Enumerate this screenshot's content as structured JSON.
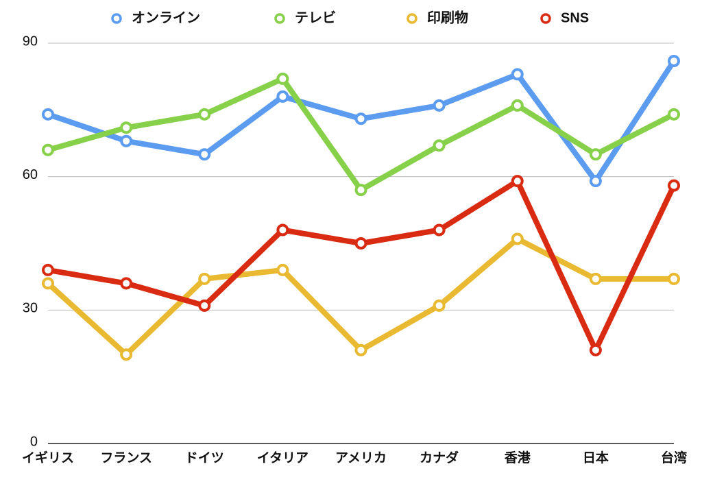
{
  "chart_data": {
    "type": "line",
    "categories": [
      "イギリス",
      "フランス",
      "ドイツ",
      "イタリア",
      "アメリカ",
      "カナダ",
      "香港",
      "日本",
      "台湾"
    ],
    "series": [
      {
        "name": "オンライン",
        "color": "#5b9cf0",
        "values": [
          74,
          68,
          65,
          78,
          73,
          76,
          83,
          59,
          86
        ]
      },
      {
        "name": "テレビ",
        "color": "#86d04a",
        "values": [
          66,
          71,
          74,
          82,
          57,
          67,
          76,
          65,
          74
        ]
      },
      {
        "name": "印刷物",
        "color": "#e8b931",
        "values": [
          36,
          20,
          37,
          39,
          21,
          31,
          46,
          37,
          37
        ]
      },
      {
        "name": "SNS",
        "color": "#d92b12",
        "values": [
          39,
          36,
          31,
          48,
          45,
          48,
          59,
          21,
          58
        ]
      }
    ],
    "ylim": [
      0,
      90
    ],
    "yticks": [
      0,
      30,
      60,
      90
    ],
    "grid": true,
    "legend": "top"
  }
}
